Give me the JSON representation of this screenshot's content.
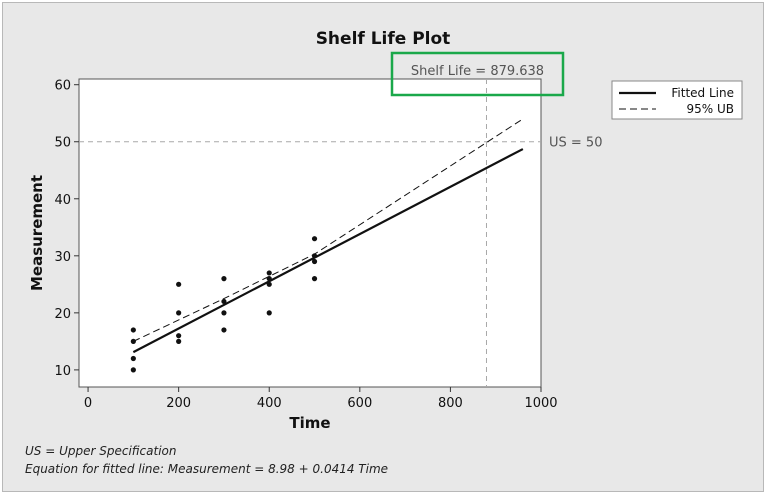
{
  "chart_data": {
    "type": "scatter",
    "title": "Shelf Life Plot",
    "xlabel": "Time",
    "ylabel": "Measurement",
    "xlim": [
      -20,
      1000
    ],
    "ylim": [
      7,
      61
    ],
    "xticks": [
      0,
      200,
      400,
      600,
      800,
      1000
    ],
    "yticks": [
      10,
      20,
      30,
      40,
      50,
      60
    ],
    "grid": false,
    "legend": "top-right",
    "points": [
      {
        "x": 100,
        "y": 10
      },
      {
        "x": 100,
        "y": 12
      },
      {
        "x": 100,
        "y": 15
      },
      {
        "x": 100,
        "y": 17
      },
      {
        "x": 200,
        "y": 15
      },
      {
        "x": 200,
        "y": 16
      },
      {
        "x": 200,
        "y": 20
      },
      {
        "x": 200,
        "y": 25
      },
      {
        "x": 300,
        "y": 17
      },
      {
        "x": 300,
        "y": 20
      },
      {
        "x": 300,
        "y": 22
      },
      {
        "x": 300,
        "y": 26
      },
      {
        "x": 400,
        "y": 20
      },
      {
        "x": 400,
        "y": 25
      },
      {
        "x": 400,
        "y": 26
      },
      {
        "x": 400,
        "y": 27
      },
      {
        "x": 500,
        "y": 26
      },
      {
        "x": 500,
        "y": 29
      },
      {
        "x": 500,
        "y": 30
      },
      {
        "x": 500,
        "y": 33
      }
    ],
    "series": [
      {
        "name": "Fitted Line",
        "style": "solid",
        "x": [
          100,
          960
        ],
        "y": [
          13.12,
          48.72
        ]
      },
      {
        "name": "95% UB",
        "style": "dashed",
        "x": [
          100,
          300,
          500,
          960
        ],
        "y": [
          15.0,
          22.5,
          30.3,
          54.0
        ]
      }
    ],
    "spec_limit": {
      "value": 50,
      "label": "US = 50"
    },
    "shelf_life": {
      "value": 879.638,
      "label": "Shelf Life = 879.638"
    },
    "highlight_color": "#1aa84a"
  },
  "notes": {
    "line1": "US = Upper Specification",
    "line2": "Equation for fitted line: Measurement = 8.98 + 0.0414 Time"
  }
}
